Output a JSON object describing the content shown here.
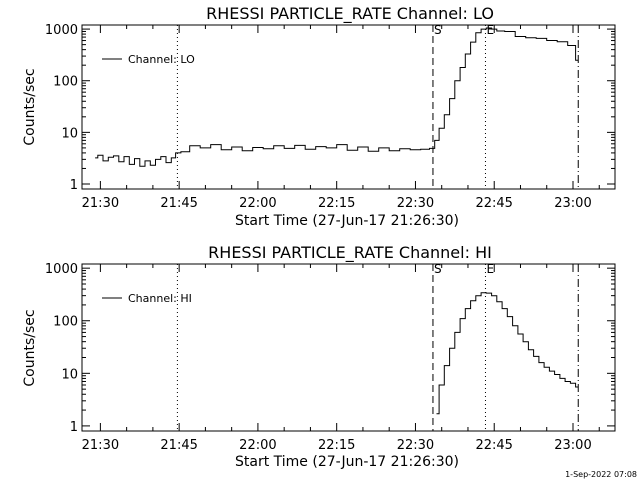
{
  "footer": "1-Sep-2022 07:08",
  "chart_data": [
    {
      "type": "line",
      "title": "RHESSI PARTICLE_RATE Channel: LO",
      "xlabel": "Start Time (27-Jun-17 21:26:30)",
      "ylabel": "Counts/sec",
      "yscale": "log",
      "xlim": [
        "21:26:30",
        "23:08:00"
      ],
      "ylim": [
        0.8,
        1200
      ],
      "xticks": [
        "21:30",
        "21:45",
        "22:00",
        "22:15",
        "22:30",
        "22:45",
        "23:00"
      ],
      "yticks": [
        {
          "value": 1,
          "label": "1"
        },
        {
          "value": 10,
          "label": "10"
        },
        {
          "value": 100,
          "label": "100"
        },
        {
          "value": 1000,
          "label": "1000"
        }
      ],
      "legend": "top-left",
      "vlines": [
        {
          "x": "21:44:40",
          "style": "dotted",
          "label": ""
        },
        {
          "x": "22:33:20",
          "style": "dashed",
          "label": "S"
        },
        {
          "x": "22:43:20",
          "style": "dotted",
          "label": "E"
        },
        {
          "x": "23:01:00",
          "style": "dashdot",
          "label": ""
        }
      ],
      "series": [
        {
          "name": "Channel: LO",
          "color": "#000000",
          "x": [
            "21:29:00",
            "21:30:00",
            "21:31:00",
            "21:32:00",
            "21:33:00",
            "21:34:00",
            "21:35:00",
            "21:36:00",
            "21:37:00",
            "21:38:00",
            "21:39:00",
            "21:40:00",
            "21:41:00",
            "21:42:00",
            "21:43:00",
            "21:44:00",
            "21:44:40",
            "21:46:00",
            "21:48:00",
            "21:50:00",
            "21:52:00",
            "21:54:00",
            "21:56:00",
            "21:58:00",
            "22:00:00",
            "22:02:00",
            "22:04:00",
            "22:06:00",
            "22:08:00",
            "22:10:00",
            "22:12:00",
            "22:14:00",
            "22:16:00",
            "22:18:00",
            "22:20:00",
            "22:22:00",
            "22:24:00",
            "22:26:00",
            "22:28:00",
            "22:30:00",
            "22:32:00",
            "22:33:20",
            "22:34:00",
            "22:35:00",
            "22:36:00",
            "22:37:00",
            "22:38:00",
            "22:39:00",
            "22:40:00",
            "22:41:00",
            "22:42:00",
            "22:43:00",
            "22:44:00",
            "22:45:00",
            "22:46:00",
            "22:48:00",
            "22:50:00",
            "22:52:00",
            "22:54:00",
            "22:56:00",
            "22:58:00",
            "23:00:00",
            "23:01:00"
          ],
          "values": [
            3.2,
            3.6,
            2.8,
            3.3,
            3.5,
            2.7,
            3.4,
            2.4,
            3.1,
            2.2,
            2.8,
            2.3,
            3.0,
            3.4,
            2.6,
            3.2,
            4.0,
            4.2,
            5.5,
            5.0,
            5.8,
            4.6,
            5.2,
            4.4,
            5.1,
            4.8,
            5.5,
            4.9,
            5.6,
            4.7,
            5.3,
            5.0,
            5.8,
            4.5,
            5.2,
            4.3,
            5.0,
            4.4,
            4.8,
            4.6,
            4.7,
            4.9,
            7,
            12,
            22,
            45,
            100,
            180,
            330,
            560,
            850,
            1000,
            1050,
            1000,
            920,
            900,
            720,
            680,
            660,
            600,
            570,
            480,
            250
          ]
        }
      ]
    },
    {
      "type": "line",
      "title": "RHESSI PARTICLE_RATE Channel: HI",
      "xlabel": "Start Time (27-Jun-17 21:26:30)",
      "ylabel": "Counts/sec",
      "yscale": "log",
      "xlim": [
        "21:26:30",
        "23:08:00"
      ],
      "ylim": [
        0.8,
        1200
      ],
      "xticks": [
        "21:30",
        "21:45",
        "22:00",
        "22:15",
        "22:30",
        "22:45",
        "23:00"
      ],
      "yticks": [
        {
          "value": 1,
          "label": "1"
        },
        {
          "value": 10,
          "label": "10"
        },
        {
          "value": 100,
          "label": "100"
        },
        {
          "value": 1000,
          "label": "1000"
        }
      ],
      "legend": "top-left",
      "vlines": [
        {
          "x": "21:44:40",
          "style": "dotted",
          "label": ""
        },
        {
          "x": "22:33:20",
          "style": "dashed",
          "label": "S"
        },
        {
          "x": "22:43:20",
          "style": "dotted",
          "label": "E"
        },
        {
          "x": "23:01:00",
          "style": "dashdot",
          "label": ""
        }
      ],
      "series": [
        {
          "name": "Channel: HI",
          "color": "#000000",
          "x": [
            "22:34:00",
            "22:35:00",
            "22:36:00",
            "22:37:00",
            "22:38:00",
            "22:39:00",
            "22:40:00",
            "22:41:00",
            "22:42:00",
            "22:43:00",
            "22:44:00",
            "22:45:00",
            "22:46:00",
            "22:47:00",
            "22:48:00",
            "22:49:00",
            "22:50:00",
            "22:51:00",
            "22:52:00",
            "22:53:00",
            "22:54:00",
            "22:55:00",
            "22:56:00",
            "22:57:00",
            "22:58:00",
            "22:59:00",
            "23:00:00",
            "23:01:00"
          ],
          "values": [
            1.7,
            6,
            14,
            30,
            60,
            110,
            170,
            240,
            300,
            340,
            335,
            300,
            230,
            170,
            120,
            80,
            56,
            40,
            28,
            21,
            16,
            13,
            11,
            9.5,
            8,
            7,
            6.5,
            5.5
          ]
        }
      ]
    }
  ]
}
